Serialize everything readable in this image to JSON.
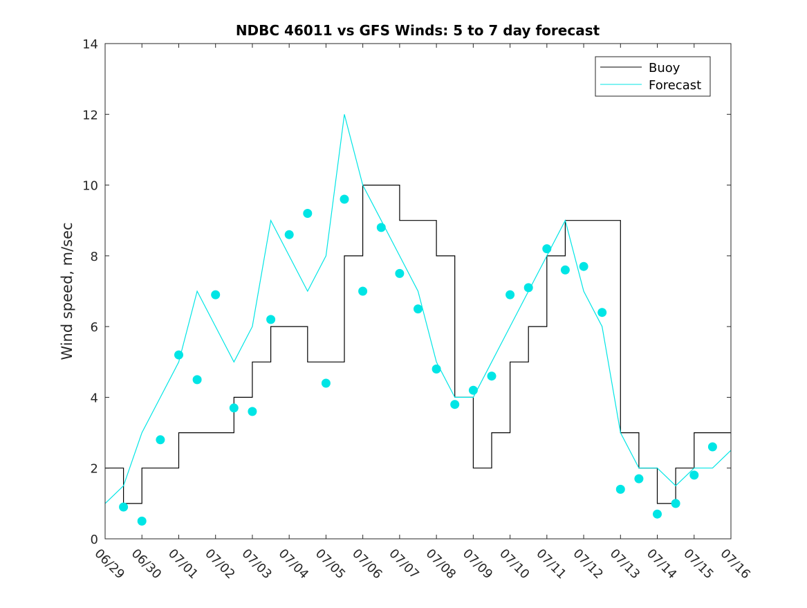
{
  "chart_data": {
    "type": "line",
    "title": "NDBC 46011 vs GFS Winds: 5 to 7 day forecast",
    "xlabel": "",
    "ylabel": "Wind speed, m/sec",
    "xlim": [
      "06/29",
      "07/16"
    ],
    "ylim": [
      0,
      14
    ],
    "x_ticks": [
      "06/29",
      "06/30",
      "07/01",
      "07/02",
      "07/03",
      "07/04",
      "07/05",
      "07/06",
      "07/07",
      "07/08",
      "07/09",
      "07/10",
      "07/11",
      "07/12",
      "07/13",
      "07/14",
      "07/15",
      "07/16"
    ],
    "y_ticks": [
      0,
      2,
      4,
      6,
      8,
      10,
      12,
      14
    ],
    "grid": false,
    "legend_position": "top-right",
    "colors": {
      "buoy": "#000000",
      "forecast": "#00e5e5",
      "axes": "#262626"
    },
    "series": [
      {
        "name": "Buoy",
        "x": [
          "06/29 00:00",
          "06/29 12:00",
          "06/30 00:00",
          "06/30 12:00",
          "07/01 00:00",
          "07/01 12:00",
          "07/02 00:00",
          "07/02 12:00",
          "07/03 00:00",
          "07/03 12:00",
          "07/04 00:00",
          "07/04 12:00",
          "07/05 00:00",
          "07/05 12:00",
          "07/06 00:00",
          "07/06 12:00",
          "07/07 00:00",
          "07/07 12:00",
          "07/08 00:00",
          "07/08 12:00",
          "07/09 00:00",
          "07/09 12:00",
          "07/10 00:00",
          "07/10 12:00",
          "07/11 00:00",
          "07/11 12:00",
          "07/12 00:00",
          "07/12 12:00",
          "07/13 00:00",
          "07/13 12:00",
          "07/14 00:00",
          "07/14 12:00",
          "07/15 00:00",
          "07/15 12:00",
          "07/16 00:00"
        ],
        "y": [
          2,
          1,
          2,
          2,
          3,
          3,
          3,
          4,
          5,
          6,
          6,
          5,
          5,
          8,
          10,
          10,
          9,
          9,
          8,
          4,
          2,
          3,
          5,
          6,
          8,
          9,
          9,
          9,
          3,
          2,
          1,
          2,
          3,
          3,
          3
        ]
      },
      {
        "name": "Forecast",
        "x": [
          "06/29 00:00",
          "06/29 12:00",
          "06/30 00:00",
          "06/30 12:00",
          "07/01 00:00",
          "07/01 12:00",
          "07/02 00:00",
          "07/02 12:00",
          "07/03 00:00",
          "07/03 12:00",
          "07/04 00:00",
          "07/04 12:00",
          "07/05 00:00",
          "07/05 12:00",
          "07/06 00:00",
          "07/06 12:00",
          "07/07 00:00",
          "07/07 12:00",
          "07/08 00:00",
          "07/08 12:00",
          "07/09 00:00",
          "07/09 12:00",
          "07/10 00:00",
          "07/10 12:00",
          "07/11 00:00",
          "07/11 12:00",
          "07/12 00:00",
          "07/12 12:00",
          "07/13 00:00",
          "07/13 12:00",
          "07/14 00:00",
          "07/14 12:00",
          "07/15 00:00",
          "07/15 12:00",
          "07/16 00:00"
        ],
        "y": [
          1,
          1.5,
          3,
          4,
          5,
          7,
          6,
          5,
          6,
          9,
          8,
          7,
          8,
          12,
          10,
          9,
          8,
          7,
          5,
          4,
          4,
          5,
          6,
          7,
          8,
          9,
          7,
          6,
          3,
          2,
          2,
          1.5,
          2,
          2,
          2.5
        ]
      },
      {
        "name": "",
        "x": [
          "06/29 12:00",
          "06/30 00:00",
          "06/30 12:00",
          "07/01 00:00",
          "07/01 12:00",
          "07/02 00:00",
          "07/02 12:00",
          "07/03 00:00",
          "07/03 12:00",
          "07/04 00:00",
          "07/04 12:00",
          "07/05 00:00",
          "07/05 12:00",
          "07/06 00:00",
          "07/06 12:00",
          "07/07 00:00",
          "07/07 12:00",
          "07/08 00:00",
          "07/08 12:00",
          "07/09 00:00",
          "07/09 12:00",
          "07/10 00:00",
          "07/10 12:00",
          "07/11 00:00",
          "07/11 12:00",
          "07/12 00:00",
          "07/12 12:00",
          "07/13 00:00",
          "07/13 12:00",
          "07/14 00:00",
          "07/14 12:00",
          "07/15 00:00",
          "07/15 12:00"
        ],
        "y": [
          0.9,
          0.5,
          2.8,
          5.2,
          4.5,
          6.9,
          3.7,
          3.6,
          6.2,
          8.6,
          9.2,
          4.4,
          9.6,
          7.0,
          8.8,
          7.5,
          6.5,
          4.8,
          3.8,
          4.2,
          4.6,
          6.9,
          7.1,
          8.2,
          7.6,
          7.7,
          6.4,
          1.4,
          1.7,
          0.7,
          1.0,
          1.8,
          2.6
        ]
      }
    ]
  }
}
